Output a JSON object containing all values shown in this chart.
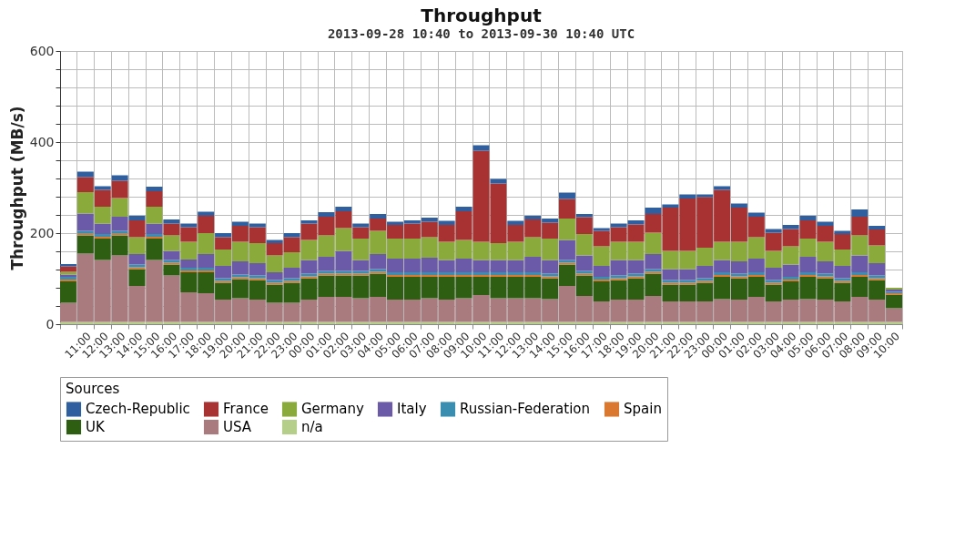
{
  "chart_data": {
    "type": "bar",
    "stacked": true,
    "title": "Throughput",
    "subtitle": "2013-09-28 10:40 to 2013-09-30 10:40 UTC",
    "ylabel": "Throughput (MB/s)",
    "legend_title": "Sources",
    "legend": "bottom",
    "grid": true,
    "categories": [
      null,
      "11:00",
      "12:00",
      "13:00",
      "14:00",
      "15:00",
      "16:00",
      "17:00",
      "18:00",
      "19:00",
      "20:00",
      "21:00",
      "22:00",
      "23:00",
      "00:00",
      "01:00",
      "02:00",
      "03:00",
      "04:00",
      "05:00",
      "06:00",
      "07:00",
      "08:00",
      "09:00",
      "10:00",
      "11:00",
      "12:00",
      "13:00",
      "14:00",
      "15:00",
      "16:00",
      "17:00",
      "18:00",
      "19:00",
      "20:00",
      "21:00",
      "22:00",
      "23:00",
      "00:00",
      "01:00",
      "02:00",
      "03:00",
      "04:00",
      "05:00",
      "06:00",
      "07:00",
      "08:00",
      "09:00",
      "10:00"
    ],
    "ylim": [
      0,
      600
    ],
    "yticks": [
      0,
      {
        "value": 40,
        "label": null
      },
      {
        "value": 80,
        "label": null
      },
      {
        "value": 120,
        "label": null
      },
      {
        "value": 160,
        "label": null
      },
      200,
      {
        "value": 240,
        "label": null
      },
      {
        "value": 280,
        "label": null
      },
      {
        "value": 320,
        "label": null
      },
      {
        "value": 360,
        "label": null
      },
      400,
      {
        "value": 440,
        "label": null
      },
      {
        "value": 480,
        "label": null
      },
      {
        "value": 520,
        "label": null
      },
      {
        "value": 560,
        "label": null
      },
      600
    ],
    "series": [
      {
        "name": "n/a",
        "color": "#b5cf8a",
        "values": [
          5,
          5,
          5,
          5,
          5,
          5,
          5,
          5,
          5,
          5,
          5,
          5,
          5,
          5,
          5,
          5,
          5,
          5,
          5,
          5,
          5,
          5,
          5,
          5,
          5,
          5,
          5,
          5,
          5,
          5,
          5,
          5,
          5,
          5,
          5,
          5,
          5,
          5,
          5,
          5,
          5,
          5,
          5,
          5,
          5,
          5,
          5,
          5,
          5
        ]
      },
      {
        "name": "USA",
        "color": "#a97a7e",
        "values": [
          42,
          150,
          136,
          146,
          79,
          136,
          102,
          65,
          63,
          49,
          52,
          49,
          42,
          42,
          49,
          55,
          55,
          52,
          55,
          49,
          49,
          52,
          49,
          52,
          59,
          52,
          52,
          52,
          50,
          79,
          57,
          45,
          49,
          49,
          57,
          45,
          45,
          45,
          50,
          49,
          55,
          45,
          49,
          50,
          49,
          45,
          55,
          49,
          30
        ]
      },
      {
        "name": "UK",
        "color": "#2d5e12",
        "values": [
          47,
          40,
          47,
          44,
          37,
          47,
          24,
          44,
          46,
          37,
          42,
          43,
          40,
          44,
          47,
          47,
          47,
          50,
          51,
          50,
          50,
          47,
          50,
          47,
          40,
          47,
          47,
          47,
          46,
          47,
          45,
          44,
          43,
          47,
          49,
          37,
          37,
          41,
          49,
          47,
          44,
          37,
          40,
          49,
          47,
          41,
          44,
          43,
          30
        ]
      },
      {
        "name": "Spain",
        "color": "#d9782e",
        "values": [
          4,
          4,
          4,
          4,
          4,
          4,
          4,
          4,
          4,
          4,
          4,
          4,
          4,
          4,
          4,
          4,
          4,
          4,
          4,
          4,
          4,
          4,
          4,
          4,
          4,
          4,
          4,
          4,
          4,
          4,
          4,
          4,
          4,
          4,
          4,
          4,
          4,
          4,
          4,
          4,
          4,
          4,
          4,
          4,
          4,
          4,
          4,
          4,
          3
        ]
      },
      {
        "name": "Russian-Federation",
        "color": "#3a8fb0",
        "values": [
          6,
          6,
          6,
          6,
          6,
          6,
          6,
          6,
          6,
          6,
          6,
          6,
          6,
          6,
          6,
          6,
          6,
          6,
          6,
          6,
          6,
          6,
          6,
          6,
          6,
          6,
          6,
          6,
          6,
          6,
          6,
          6,
          6,
          6,
          6,
          6,
          6,
          6,
          6,
          6,
          6,
          6,
          6,
          6,
          6,
          6,
          6,
          6,
          3
        ]
      },
      {
        "name": "Italy",
        "color": "#6a5aa8",
        "values": [
          5,
          38,
          23,
          31,
          23,
          23,
          20,
          18,
          30,
          27,
          29,
          27,
          17,
          23,
          30,
          31,
          44,
          24,
          33,
          30,
          30,
          32,
          27,
          30,
          27,
          27,
          27,
          34,
          30,
          44,
          34,
          24,
          34,
          30,
          33,
          24,
          24,
          27,
          27,
          27,
          30,
          27,
          27,
          34,
          27,
          27,
          37,
          27,
          5
        ]
      },
      {
        "name": "Germany",
        "color": "#8aab3c",
        "values": [
          6,
          47,
          37,
          41,
          37,
          37,
          34,
          39,
          46,
          36,
          43,
          44,
          37,
          34,
          44,
          47,
          50,
          47,
          51,
          44,
          44,
          45,
          40,
          41,
          40,
          37,
          40,
          43,
          47,
          47,
          47,
          43,
          40,
          40,
          47,
          40,
          40,
          40,
          40,
          43,
          47,
          37,
          40,
          40,
          43,
          36,
          44,
          39,
          4
        ]
      },
      {
        "name": "France",
        "color": "#a83232",
        "values": [
          12,
          33,
          37,
          38,
          37,
          34,
          26,
          32,
          38,
          27,
          35,
          35,
          27,
          33,
          36,
          41,
          37,
          25,
          27,
          30,
          33,
          34,
          37,
          63,
          200,
          131,
          37,
          39,
          35,
          43,
          37,
          34,
          32,
          38,
          41,
          95,
          115,
          111,
          114,
          75,
          45,
          40,
          38,
          40,
          35,
          34,
          41,
          35,
          0
        ]
      },
      {
        "name": "Czech-Republic",
        "color": "#2f5f9e",
        "values": [
          5,
          12,
          8,
          12,
          10,
          10,
          9,
          8,
          9,
          9,
          9,
          8,
          7,
          9,
          7,
          10,
          10,
          8,
          10,
          7,
          7,
          9,
          9,
          10,
          12,
          10,
          9,
          8,
          9,
          14,
          7,
          6,
          8,
          9,
          14,
          7,
          9,
          6,
          8,
          9,
          9,
          8,
          9,
          10,
          9,
          7,
          16,
          8,
          0
        ]
      }
    ]
  }
}
